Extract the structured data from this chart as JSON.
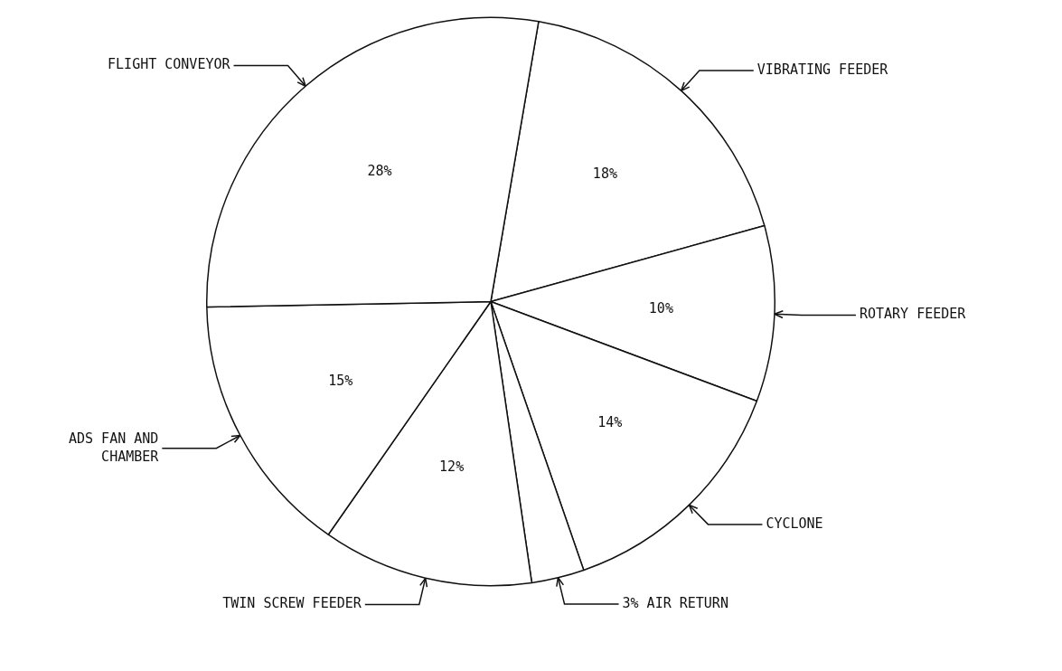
{
  "chart_data": {
    "type": "pie",
    "categories": [
      "VIBRATING FEEDER",
      "ROTARY FEEDER",
      "CYCLONE",
      "3% AIR RETURN",
      "TWIN SCREW FEEDER",
      "ADS FAN AND CHAMBER",
      "FLIGHT CONVEYOR"
    ],
    "values": [
      18,
      10,
      14,
      3,
      12,
      15,
      28
    ],
    "value_labels": [
      "18%",
      "10%",
      "14%",
      null,
      "12%",
      "15%",
      "28%"
    ],
    "colors": [
      "#ffffff",
      "#ffffff",
      "#ffffff",
      "#ffffff",
      "#ffffff",
      "#ffffff",
      "#ffffff"
    ],
    "legend": false
  }
}
